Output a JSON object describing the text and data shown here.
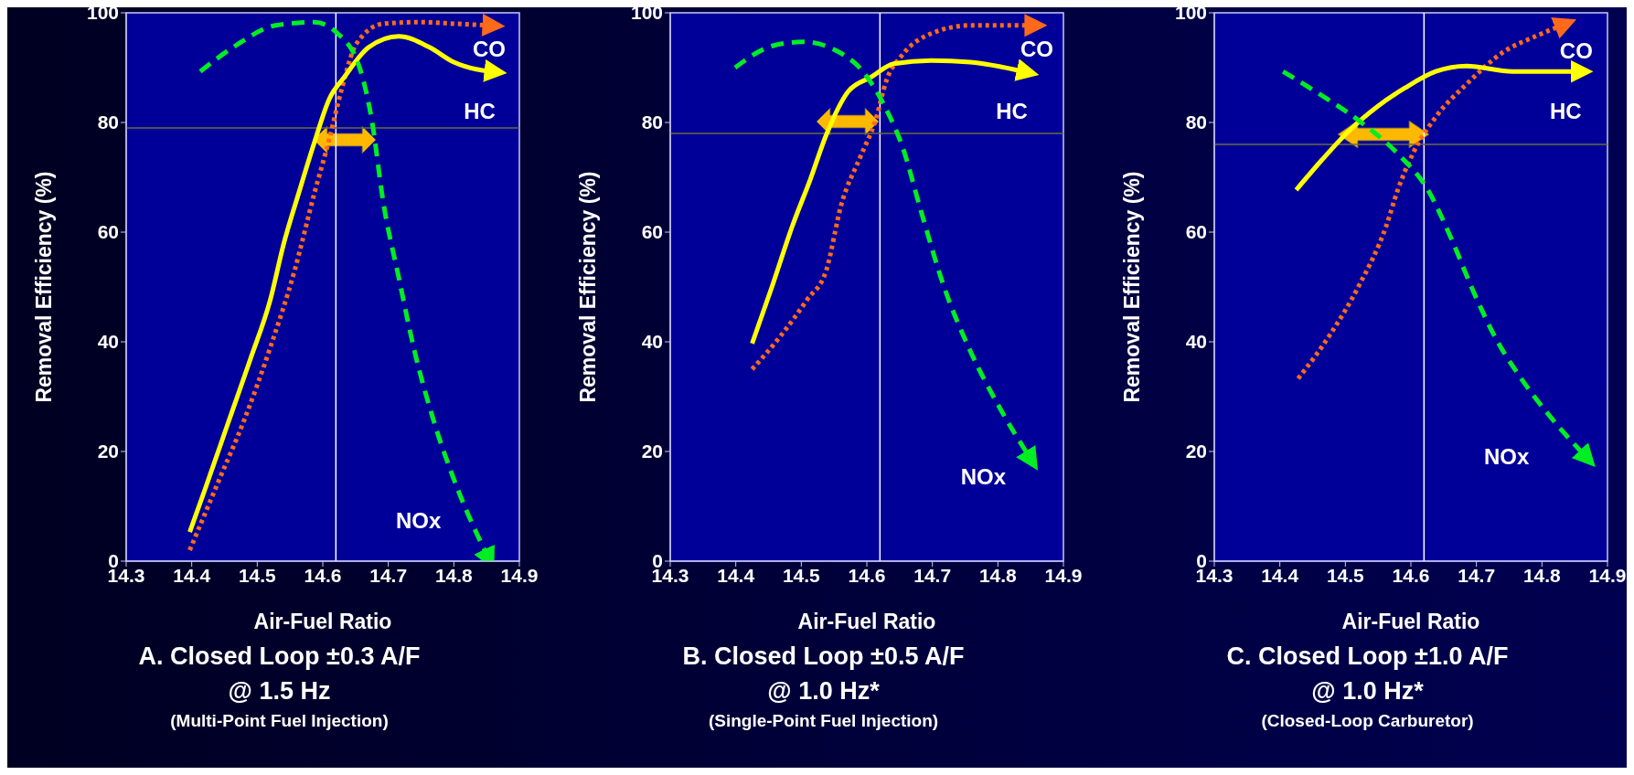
{
  "chart_data": [
    {
      "type": "line",
      "title": "A. Closed Loop ±0.3 A/F",
      "subtitle": "@ 1.5 Hz",
      "annotations": [
        "(Multi-Point Fuel Injection)"
      ],
      "xlabel": "Air-Fuel Ratio",
      "ylabel": "Removal Efficiency (%)",
      "xlim": [
        14.3,
        14.9
      ],
      "xticks": [
        14.3,
        14.4,
        14.5,
        14.6,
        14.7,
        14.8,
        14.9
      ],
      "ylim": [
        0,
        100
      ],
      "yticks": [
        0,
        20,
        40,
        60,
        80,
        100
      ],
      "grid": false,
      "ref_lines": [
        {
          "axis": "x",
          "value": 14.62,
          "color": "#ffffff"
        },
        {
          "axis": "y",
          "value": 79,
          "color": "#6b6b3a"
        }
      ],
      "series": [
        {
          "name": "CO",
          "color": "#ff6a1a",
          "line_style": "dotted",
          "x": [
            14.397,
            14.44,
            14.48,
            14.52,
            14.557,
            14.587,
            14.61,
            14.628,
            14.651,
            14.692,
            14.745,
            14.804,
            14.854
          ],
          "values": [
            2,
            14.3,
            25.7,
            39,
            53,
            67,
            77,
            85.7,
            94.3,
            98,
            98.3,
            98,
            97.7
          ]
        },
        {
          "name": "HC",
          "color": "#ffff00",
          "line_style": "solid",
          "x": [
            14.397,
            14.42,
            14.457,
            14.49,
            14.52,
            14.54,
            14.563,
            14.587,
            14.61,
            14.633,
            14.67,
            14.716,
            14.763,
            14.8,
            14.834,
            14.857
          ],
          "values": [
            5.3,
            13,
            25.7,
            37,
            47.7,
            57.7,
            67,
            76.3,
            84.3,
            88.3,
            93.7,
            95.7,
            93.7,
            91,
            89.7,
            89.3
          ]
        },
        {
          "name": "NOx",
          "color": "#00ee22",
          "line_style": "dashed",
          "x": [
            14.413,
            14.463,
            14.528,
            14.587,
            14.622,
            14.657,
            14.675,
            14.692,
            14.716,
            14.74,
            14.769,
            14.804,
            14.851
          ],
          "values": [
            89.3,
            93.7,
            97.7,
            98.3,
            96.3,
            89.7,
            80.3,
            65.7,
            51.7,
            38.3,
            25.7,
            13.7,
            1
          ]
        }
      ]
    },
    {
      "type": "line",
      "title": "B. Closed Loop ±0.5 A/F",
      "subtitle": "@ 1.0 Hz*",
      "annotations": [
        "(Single-Point Fuel Injection)"
      ],
      "xlabel": "Air-Fuel Ratio",
      "ylabel": "Removal Efficiency (%)",
      "xlim": [
        14.3,
        14.9
      ],
      "xticks": [
        14.3,
        14.4,
        14.5,
        14.6,
        14.7,
        14.8,
        14.9
      ],
      "ylim": [
        0,
        100
      ],
      "yticks": [
        0,
        20,
        40,
        60,
        80,
        100
      ],
      "grid": false,
      "ref_lines": [
        {
          "axis": "x",
          "value": 14.62,
          "color": "#ffffff"
        },
        {
          "axis": "y",
          "value": 78,
          "color": "#6b6b3a"
        }
      ],
      "series": [
        {
          "name": "CO",
          "color": "#ff6a1a",
          "line_style": "dotted",
          "x": [
            14.425,
            14.468,
            14.509,
            14.538,
            14.561,
            14.59,
            14.613,
            14.63,
            14.654,
            14.7,
            14.758,
            14.851
          ],
          "values": [
            35,
            41,
            47.7,
            53,
            65,
            73.7,
            80.3,
            87.7,
            92.3,
            96.3,
            97.7,
            97.7
          ]
        },
        {
          "name": "HC",
          "color": "#ffff00",
          "line_style": "solid",
          "x": [
            14.425,
            14.456,
            14.486,
            14.514,
            14.538,
            14.572,
            14.607,
            14.641,
            14.7,
            14.758,
            14.839
          ],
          "values": [
            39.7,
            50.3,
            61,
            69.7,
            77.7,
            85.7,
            88.3,
            90.7,
            91.3,
            91,
            89.3
          ]
        },
        {
          "name": "NOx",
          "color": "#00ee22",
          "line_style": "dashed",
          "x": [
            14.399,
            14.457,
            14.503,
            14.555,
            14.596,
            14.63,
            14.654,
            14.683,
            14.717,
            14.758,
            14.804,
            14.848
          ],
          "values": [
            90,
            94,
            94.7,
            93,
            89,
            82.3,
            75.7,
            63.7,
            50.3,
            38.3,
            27.7,
            19
          ]
        }
      ]
    },
    {
      "type": "line",
      "title": "C. Closed Loop ±1.0 A/F",
      "subtitle": "@ 1.0 Hz*",
      "annotations": [
        "(Closed-Loop Carburetor)"
      ],
      "xlabel": "Air-Fuel Ratio",
      "ylabel": "Removal Efficiency (%)",
      "xlim": [
        14.3,
        14.9
      ],
      "xticks": [
        14.3,
        14.4,
        14.5,
        14.6,
        14.7,
        14.8,
        14.9
      ],
      "ylim": [
        0,
        100
      ],
      "yticks": [
        0,
        20,
        40,
        60,
        80,
        100
      ],
      "grid": false,
      "ref_lines": [
        {
          "axis": "x",
          "value": 14.62,
          "color": "#ffffff"
        },
        {
          "axis": "y",
          "value": 76,
          "color": "#6b6b3a"
        }
      ],
      "series": [
        {
          "name": "CO",
          "color": "#ff6a1a",
          "line_style": "dotted",
          "x": [
            14.428,
            14.475,
            14.521,
            14.562,
            14.58,
            14.603,
            14.638,
            14.685,
            14.743,
            14.79,
            14.83
          ],
          "values": [
            33.3,
            41,
            50.3,
            61,
            67.7,
            74.3,
            81,
            87,
            93,
            95.7,
            97.7
          ]
        },
        {
          "name": "HC",
          "color": "#ffff00",
          "line_style": "solid",
          "x": [
            14.425,
            14.463,
            14.504,
            14.55,
            14.591,
            14.638,
            14.685,
            14.755,
            14.854
          ],
          "values": [
            67.7,
            73,
            78.3,
            83,
            86.3,
            89.3,
            90.3,
            89.3,
            89.3
          ]
        },
        {
          "name": "NOx",
          "color": "#00ee22",
          "line_style": "dashed",
          "x": [
            14.405,
            14.463,
            14.521,
            14.58,
            14.626,
            14.661,
            14.696,
            14.731,
            14.766,
            14.813,
            14.865
          ],
          "values": [
            89.3,
            85,
            80.3,
            74.3,
            67.7,
            59,
            49,
            40.3,
            33.7,
            26.3,
            19.3
          ]
        }
      ]
    }
  ]
}
